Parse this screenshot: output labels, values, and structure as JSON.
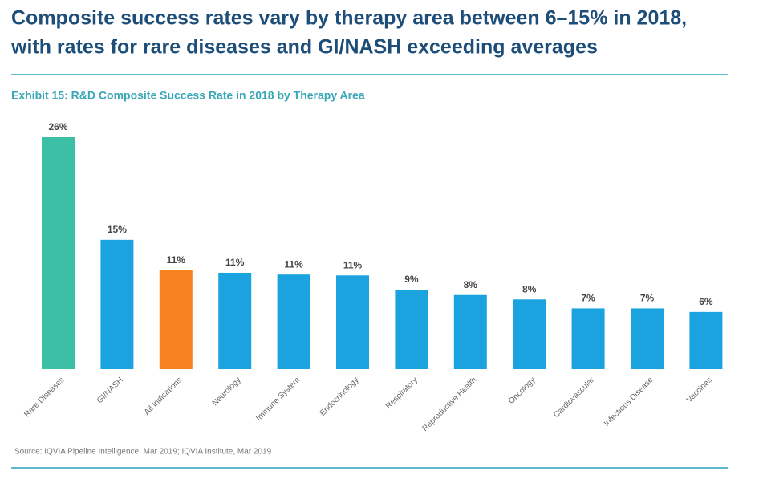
{
  "chart_data": {
    "type": "bar",
    "title_lines": [
      "Composite success rates vary by therapy area between 6–15% in 2018,",
      "with rates for rare diseases and GI/NASH exceeding averages"
    ],
    "subtitle": "Exhibit 15: R&D Composite Success Rate in 2018 by Therapy Area",
    "categories": [
      "Rare Diseases",
      "GI/NASH",
      "All Indications",
      "Neurology",
      "Immune System",
      "Endocrinology",
      "Respiratory",
      "Reproductive Health",
      "Oncology",
      "Cardiovascular",
      "Infectious Disease",
      "Vaccines"
    ],
    "values": [
      26,
      14.5,
      11.1,
      10.8,
      10.6,
      10.5,
      8.9,
      8.3,
      7.8,
      6.8,
      6.8,
      6.4
    ],
    "value_labels": [
      "26%",
      "15%",
      "11%",
      "11%",
      "11%",
      "11%",
      "9%",
      "8%",
      "8%",
      "7%",
      "7%",
      "6%"
    ],
    "colors": [
      "#3cbfa4",
      "#1ba3e0",
      "#f5821f",
      "#1ba3e0",
      "#1ba3e0",
      "#1ba3e0",
      "#1ba3e0",
      "#1ba3e0",
      "#1ba3e0",
      "#1ba3e0",
      "#1ba3e0",
      "#1ba3e0"
    ],
    "source": "Source: IQVIA Pipeline Intelligence, Mar 2019; IQVIA Institute, Mar 2019"
  }
}
